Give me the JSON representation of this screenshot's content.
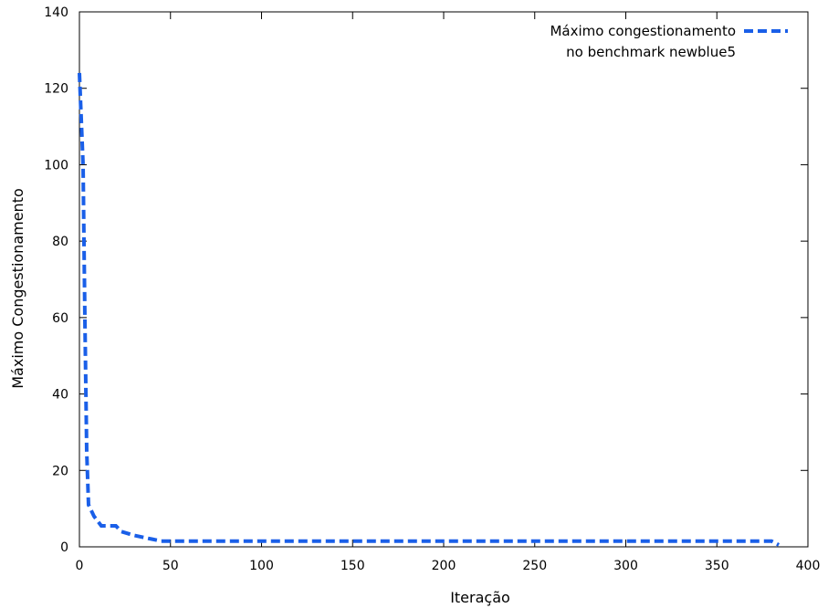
{
  "chart_data": {
    "type": "line",
    "title": "",
    "xlabel": "Iteração",
    "ylabel": "Máximo Congestionamento",
    "xlim": [
      0,
      400
    ],
    "ylim": [
      0,
      140
    ],
    "xticks": [
      0,
      50,
      100,
      150,
      200,
      250,
      300,
      350,
      400
    ],
    "yticks": [
      0,
      20,
      40,
      60,
      80,
      100,
      120,
      140
    ],
    "grid": false,
    "legend_position": "top-right",
    "series": [
      {
        "name": "Máximo congestionamento\nno benchmark newblue5",
        "legend_lines": [
          "Máximo congestionamento",
          "no benchmark newblue5"
        ],
        "color": "#1a5fe8",
        "line_style": "dashed",
        "x": [
          0,
          2,
          3,
          4,
          5,
          8,
          12,
          15,
          20,
          23,
          30,
          35,
          40,
          45,
          50,
          60,
          100,
          150,
          200,
          250,
          300,
          350,
          378,
          380,
          382,
          384
        ],
        "y": [
          124,
          100,
          60,
          25,
          11,
          8,
          5.5,
          5.5,
          5.5,
          4,
          3,
          2.5,
          2,
          1.5,
          1.5,
          1.5,
          1.5,
          1.5,
          1.5,
          1.5,
          1.5,
          1.5,
          1.5,
          1.5,
          1.0,
          0.5
        ]
      }
    ]
  }
}
